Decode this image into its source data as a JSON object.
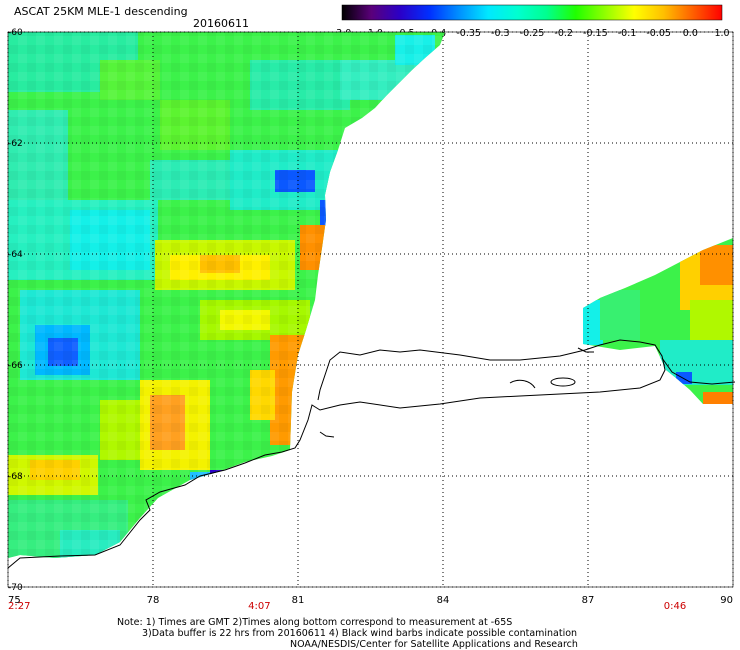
{
  "header": {
    "title": "ASCAT 25KM MLE-1 descending",
    "date": "20160611"
  },
  "colorbar": {
    "labels": [
      "-3.0",
      "-1.0",
      "-0.5",
      "-0.4",
      "-0.35",
      "-0.3",
      "-0.25",
      "-0.2",
      "-0.15",
      "-0.1",
      "-0.05",
      "0.0",
      "1.0"
    ],
    "colors": [
      "#000000",
      "#5a007a",
      "#2a00c8",
      "#0030ff",
      "#0090ff",
      "#00e8ff",
      "#00ffd0",
      "#00ff90",
      "#20ff00",
      "#90ff00",
      "#ffff00",
      "#ffc000",
      "#ff6000",
      "#ff0000"
    ]
  },
  "map": {
    "lat_labels": [
      "-60",
      "-62",
      "-64",
      "-66",
      "-68",
      "-70"
    ],
    "lon_labels": [
      "75",
      "78",
      "81",
      "84",
      "87",
      "90"
    ],
    "lat_range": [
      -70,
      -60
    ],
    "lon_range": [
      75,
      90
    ],
    "times": [
      {
        "lon": 75,
        "text": "2:27"
      },
      {
        "lon": 80.2,
        "text": "4:07"
      },
      {
        "lon": 88.8,
        "text": "0:46"
      }
    ]
  },
  "notes": {
    "line1": "Note: 1) Times are GMT 2)Times along bottom correspond to measurement at -65S",
    "line2": "3)Data buffer is 22 hrs from 20160611 4) Black wind barbs indicate possible contamination",
    "line3": "NOAA/NESDIS/Center for Satellite Applications and Research"
  }
}
